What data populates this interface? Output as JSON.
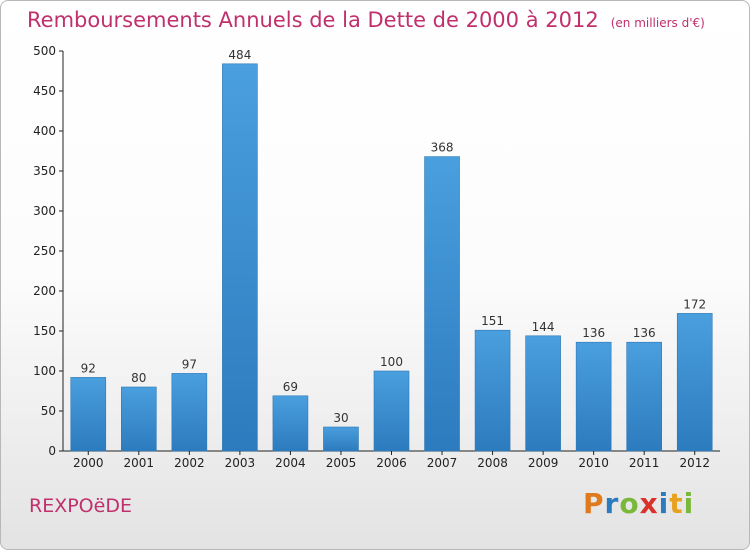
{
  "chart_data": {
    "type": "bar",
    "title": "Remboursements Annuels de la Dette de 2000 à 2012",
    "subtitle": "(en milliers d'€)",
    "categories": [
      "2000",
      "2001",
      "2002",
      "2003",
      "2004",
      "2005",
      "2006",
      "2007",
      "2008",
      "2009",
      "2010",
      "2011",
      "2012"
    ],
    "values": [
      92,
      80,
      97,
      484,
      69,
      30,
      100,
      368,
      151,
      144,
      136,
      136,
      172
    ],
    "ylim": [
      0,
      500
    ],
    "yticks": [
      0,
      50,
      100,
      150,
      200,
      250,
      300,
      350,
      400,
      450,
      500
    ],
    "grid": false,
    "bar_color": "#4a9fde",
    "bar_color_dark": "#2c7bbe"
  },
  "commune": "REXPOëDE",
  "logo": {
    "letters": [
      "P",
      "r",
      "o",
      "x",
      "i",
      "t",
      "i"
    ],
    "colors": [
      "#e07a1f",
      "#2c7bbe",
      "#7ab83a",
      "#d9322a",
      "#2c7bbe",
      "#e8a11c",
      "#7ab83a"
    ]
  },
  "colors": {
    "title": "#c0306d"
  }
}
